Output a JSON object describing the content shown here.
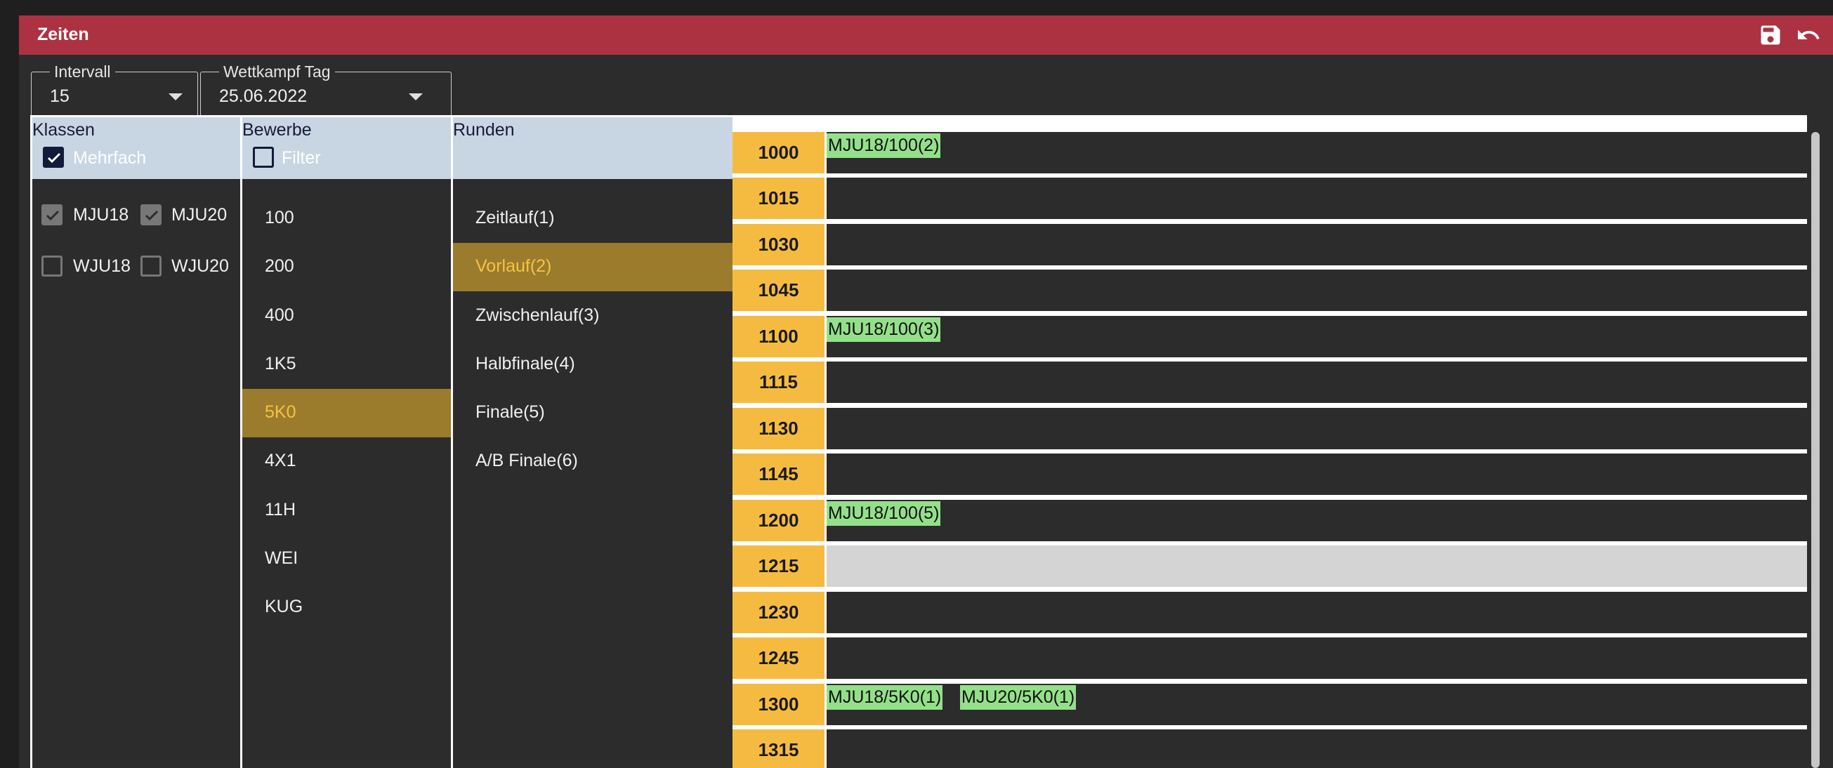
{
  "dialog": {
    "title": "Zeiten"
  },
  "fields": {
    "intervall": {
      "label": "Intervall",
      "value": "15"
    },
    "tag": {
      "label": "Wettkampf Tag",
      "value": "25.06.2022"
    }
  },
  "klassen": {
    "header": "Klassen",
    "mehrfach": {
      "label": "Mehrfach",
      "checked": true
    },
    "items": [
      {
        "label": "MJU18",
        "checked": true
      },
      {
        "label": "MJU20",
        "checked": true
      },
      {
        "label": "WJU18",
        "checked": false
      },
      {
        "label": "WJU20",
        "checked": false
      }
    ]
  },
  "bewerbe": {
    "header": "Bewerbe",
    "filter": {
      "label": "Filter",
      "checked": false
    },
    "items": [
      "100",
      "200",
      "400",
      "1K5",
      "5K0",
      "4X1",
      "11H",
      "WEI",
      "KUG"
    ],
    "selected": "5K0"
  },
  "runden": {
    "header": "Runden",
    "items": [
      "Zeitlauf(1)",
      "Vorlauf(2)",
      "Zwischenlauf(3)",
      "Halbfinale(4)",
      "Finale(5)",
      "A/B Finale(6)"
    ],
    "selected": "Vorlauf(2)"
  },
  "timeline": {
    "rows": [
      {
        "time": "1000",
        "chips": [
          "MJU18/100(2)"
        ]
      },
      {
        "time": "1015",
        "chips": []
      },
      {
        "time": "1030",
        "chips": []
      },
      {
        "time": "1045",
        "chips": []
      },
      {
        "time": "1100",
        "chips": [
          "MJU18/100(3)"
        ]
      },
      {
        "time": "1115",
        "chips": []
      },
      {
        "time": "1130",
        "chips": []
      },
      {
        "time": "1145",
        "chips": []
      },
      {
        "time": "1200",
        "chips": [
          "MJU18/100(5)"
        ]
      },
      {
        "time": "1215",
        "chips": [],
        "highlight": true
      },
      {
        "time": "1230",
        "chips": []
      },
      {
        "time": "1245",
        "chips": []
      },
      {
        "time": "1300",
        "chips": [
          "MJU18/5K0(1)",
          "MJU20/5K0(1)"
        ]
      },
      {
        "time": "1315",
        "chips": []
      }
    ]
  },
  "colors": {
    "accent": "#ad3241",
    "selected_bg": "#9b7b2c",
    "selected_text": "#f5c342",
    "time_label": "#f5bb41",
    "chip": "#94e08a",
    "header_bg": "#c8d6e3"
  },
  "icons": {
    "save": "save-icon",
    "undo": "undo-icon",
    "dropdown": "caret-down-icon",
    "check": "check-icon"
  }
}
